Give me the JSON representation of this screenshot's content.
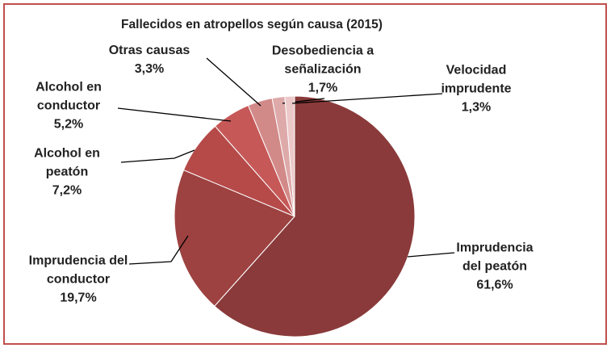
{
  "chart_data": {
    "type": "pie",
    "title": "Fallecidos en atropellos según causa (2015)",
    "categories": [
      "Imprudencia del peatón",
      "Imprudencia del conductor",
      "Alcohol en peatón",
      "Alcohol en conductor",
      "Otras causas",
      "Desobediencia a señalización",
      "Velocidad imprudente"
    ],
    "values": [
      61.6,
      19.7,
      7.2,
      5.2,
      3.3,
      1.7,
      1.3
    ],
    "value_labels": [
      "61,6%",
      "19,7%",
      "7,2%",
      "5,2%",
      "3,3%",
      "1,7%",
      "1,3%"
    ],
    "colors": [
      "#8a3a3a",
      "#9d4241",
      "#b54a49",
      "#c65958",
      "#d28a89",
      "#dea9a9",
      "#ecc9c9"
    ]
  }
}
